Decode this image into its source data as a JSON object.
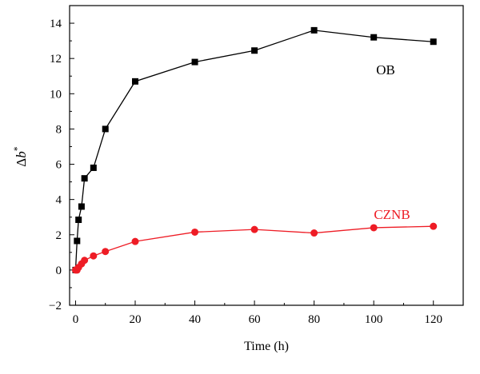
{
  "chart_data": {
    "type": "line",
    "title": "",
    "xlabel": "Time (h)",
    "ylabel": "Δb*",
    "xlim": [
      -2,
      130
    ],
    "ylim": [
      -2,
      15
    ],
    "x_ticks": [
      0,
      20,
      40,
      60,
      80,
      100,
      120
    ],
    "x_tick_labels": [
      "0",
      "20",
      "40",
      "60",
      "80",
      "100",
      "120"
    ],
    "y_ticks": [
      -2,
      0,
      2,
      4,
      6,
      8,
      10,
      12,
      14
    ],
    "y_tick_labels": [
      "−2",
      "0",
      "2",
      "4",
      "6",
      "8",
      "10",
      "12",
      "14"
    ],
    "grid": false,
    "legend": "inline labels near series",
    "series": [
      {
        "name": "OB",
        "color": "#000000",
        "marker": "square",
        "x": [
          0,
          0.5,
          1,
          2,
          3,
          6,
          10,
          20,
          40,
          60,
          80,
          100,
          120
        ],
        "y": [
          0,
          1.65,
          2.85,
          3.6,
          5.2,
          5.8,
          8.0,
          10.7,
          11.8,
          12.45,
          13.6,
          13.2,
          12.95
        ]
      },
      {
        "name": "CZNB",
        "color": "#ee1c25",
        "marker": "circle",
        "x": [
          0,
          0.5,
          1,
          2,
          3,
          6,
          10,
          20,
          40,
          60,
          80,
          100,
          120
        ],
        "y": [
          0,
          0.0,
          0.15,
          0.35,
          0.55,
          0.8,
          1.05,
          1.62,
          2.15,
          2.3,
          2.1,
          2.4,
          2.48
        ]
      }
    ]
  }
}
